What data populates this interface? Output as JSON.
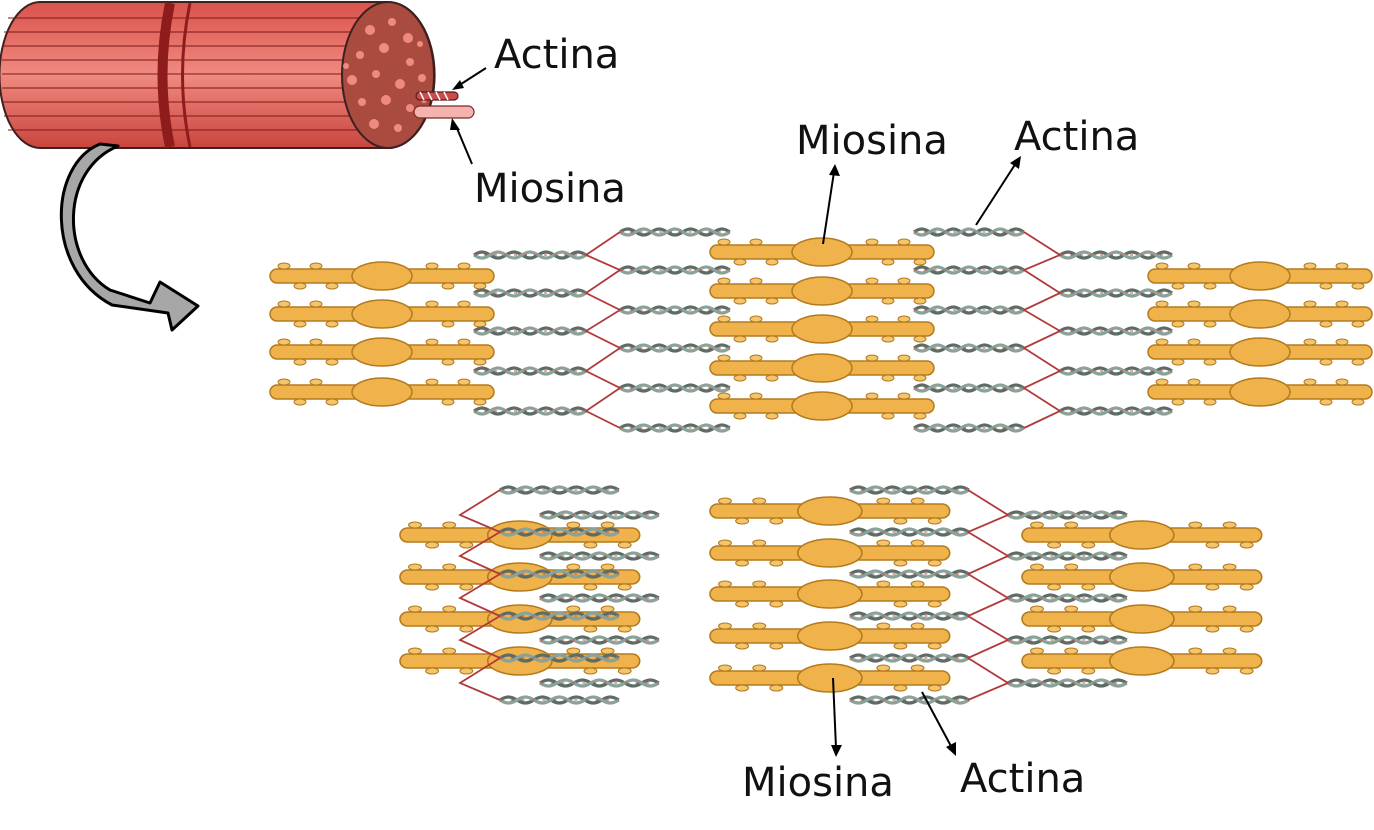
{
  "labels": {
    "fiber_actin": "Actina",
    "fiber_myosin": "Miosina",
    "relaxed_myosin": "Miosina",
    "relaxed_actin": "Actina",
    "contracted_myosin": "Miosina",
    "contracted_actin": "Actina"
  },
  "colors": {
    "muscle_fill": "#e8736a",
    "muscle_dark": "#8e1c1c",
    "muscle_end": "#a94b3f",
    "myosin": "#f0b24a",
    "myosin_stroke": "#b37a1e",
    "actin": "#6c7c74",
    "z_line": "#b23a3a",
    "arrow_fill": "#a7a7a7"
  },
  "states": {
    "relaxed": {
      "myosin_rows": 5,
      "side_myosin_rows": 4,
      "actin_strands": 5
    },
    "contracted": {
      "myosin_rows": 5,
      "side_myosin_rows": 4,
      "actin_strands": 5
    }
  }
}
